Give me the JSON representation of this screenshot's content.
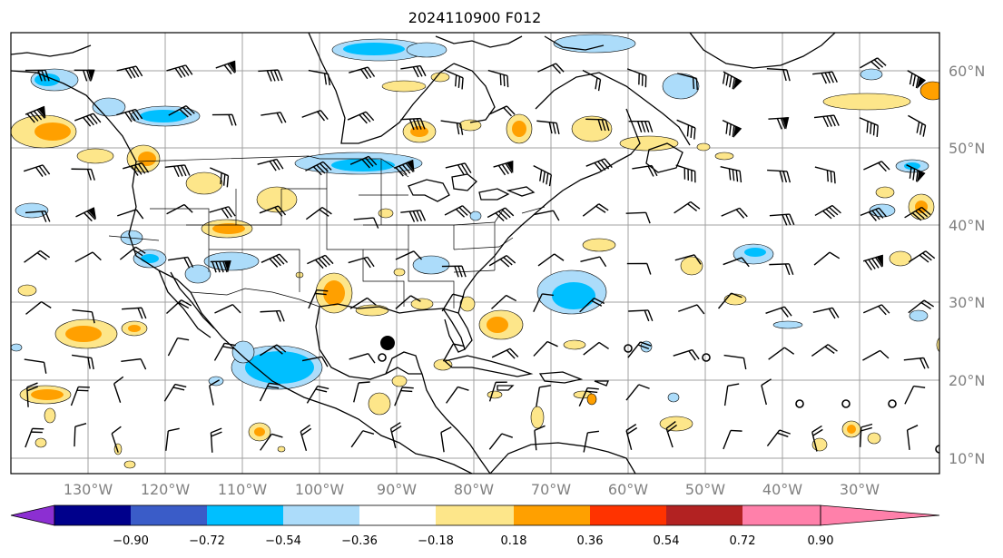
{
  "title": "2024110900 F012",
  "lat_labels": [
    "60°N",
    "50°N",
    "40°N",
    "30°N",
    "20°N",
    "10°N"
  ],
  "lon_labels": [
    "130°W",
    "120°W",
    "110°W",
    "100°W",
    "90°W",
    "80°W",
    "70°W",
    "60°W",
    "50°W",
    "40°W",
    "30°W"
  ],
  "colorbar": {
    "colors": [
      "#8c2fd2",
      "#00008b",
      "#3a5cc8",
      "#00bfff",
      "#acdcfa",
      "#ffffff",
      "#fde68a",
      "#ffa000",
      "#ff3300",
      "#b22222",
      "#ff80aa"
    ],
    "labels": [
      "−0.90",
      "−0.72",
      "−0.54",
      "−0.36",
      "−0.18",
      "0.18",
      "0.36",
      "0.54",
      "0.72",
      "0.90"
    ]
  },
  "cyclone_marker": {
    "label": "",
    "lon": -91.5,
    "lat": 24.5
  }
}
